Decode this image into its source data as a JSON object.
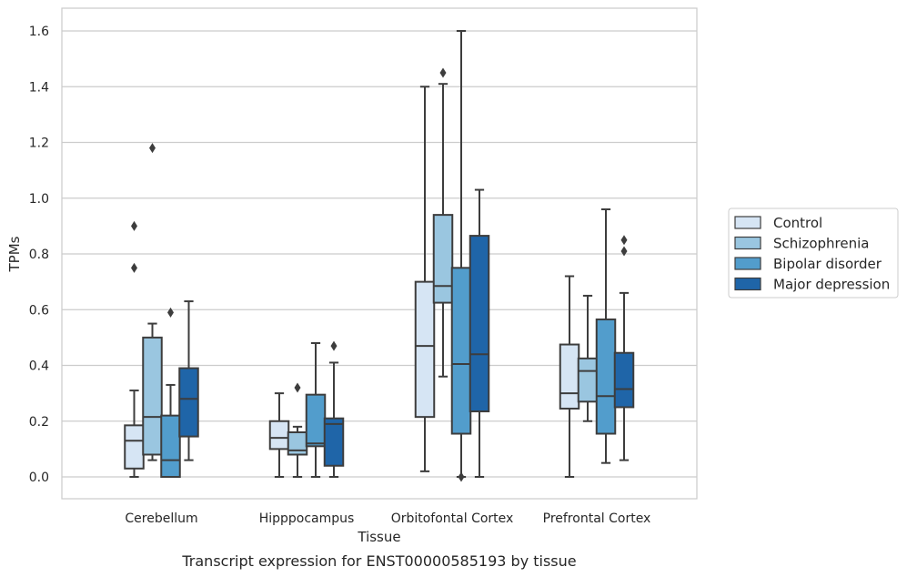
{
  "chart_data": {
    "type": "box",
    "title": "",
    "caption": "Transcript expression for ENST00000585193 by tissue",
    "xlabel": "Tissue",
    "ylabel": "TPMs",
    "ylim": [
      -0.08,
      1.68
    ],
    "yticks": [
      0.0,
      0.2,
      0.4,
      0.6,
      0.8,
      1.0,
      1.2,
      1.4,
      1.6
    ],
    "ytick_labels": [
      "0.0",
      "0.2",
      "0.4",
      "0.6",
      "0.8",
      "1.0",
      "1.2",
      "1.4",
      "1.6"
    ],
    "grid": "horizontal",
    "legend_position": "right",
    "categories": [
      "Cerebellum",
      "Hipppocampus",
      "Orbitofontal Cortex",
      "Prefrontal Cortex"
    ],
    "series": [
      {
        "name": "Control",
        "color": "#d6e5f4",
        "boxes": [
          {
            "whislo": 0.0,
            "q1": 0.03,
            "med": 0.13,
            "q3": 0.185,
            "whishi": 0.31,
            "fliers": [
              0.75,
              0.9
            ]
          },
          {
            "whislo": 0.0,
            "q1": 0.1,
            "med": 0.14,
            "q3": 0.2,
            "whishi": 0.3,
            "fliers": []
          },
          {
            "whislo": 0.02,
            "q1": 0.215,
            "med": 0.47,
            "q3": 0.7,
            "whishi": 1.4,
            "fliers": []
          },
          {
            "whislo": 0.0,
            "q1": 0.245,
            "med": 0.3,
            "q3": 0.475,
            "whishi": 0.72,
            "fliers": []
          }
        ]
      },
      {
        "name": "Schizophrenia",
        "color": "#9ac6e0",
        "boxes": [
          {
            "whislo": 0.06,
            "q1": 0.08,
            "med": 0.215,
            "q3": 0.5,
            "whishi": 0.55,
            "fliers": [
              1.18
            ]
          },
          {
            "whislo": 0.0,
            "q1": 0.08,
            "med": 0.095,
            "q3": 0.16,
            "whishi": 0.18,
            "fliers": [
              0.32
            ]
          },
          {
            "whislo": 0.36,
            "q1": 0.625,
            "med": 0.685,
            "q3": 0.94,
            "whishi": 1.41,
            "fliers": [
              1.45
            ]
          },
          {
            "whislo": 0.2,
            "q1": 0.27,
            "med": 0.38,
            "q3": 0.425,
            "whishi": 0.65,
            "fliers": []
          }
        ]
      },
      {
        "name": "Bipolar disorder",
        "color": "#529dcc",
        "boxes": [
          {
            "whislo": 0.0,
            "q1": 0.0,
            "med": 0.06,
            "q3": 0.22,
            "whishi": 0.33,
            "fliers": [
              0.59
            ]
          },
          {
            "whislo": 0.0,
            "q1": 0.11,
            "med": 0.12,
            "q3": 0.295,
            "whishi": 0.48,
            "fliers": []
          },
          {
            "whislo": 0.0,
            "q1": 0.155,
            "med": 0.405,
            "q3": 0.75,
            "whishi": 1.6,
            "fliers": [
              0.0
            ]
          },
          {
            "whislo": 0.05,
            "q1": 0.155,
            "med": 0.29,
            "q3": 0.565,
            "whishi": 0.96,
            "fliers": []
          }
        ]
      },
      {
        "name": "Major depression",
        "color": "#1f65a8",
        "boxes": [
          {
            "whislo": 0.06,
            "q1": 0.145,
            "med": 0.28,
            "q3": 0.39,
            "whishi": 0.63,
            "fliers": []
          },
          {
            "whislo": 0.0,
            "q1": 0.04,
            "med": 0.19,
            "q3": 0.21,
            "whishi": 0.41,
            "fliers": [
              0.47
            ]
          },
          {
            "whislo": 0.0,
            "q1": 0.235,
            "med": 0.44,
            "q3": 0.865,
            "whishi": 1.03,
            "fliers": []
          },
          {
            "whislo": 0.06,
            "q1": 0.25,
            "med": 0.315,
            "q3": 0.445,
            "whishi": 0.66,
            "fliers": [
              0.81,
              0.85
            ]
          }
        ]
      }
    ]
  }
}
